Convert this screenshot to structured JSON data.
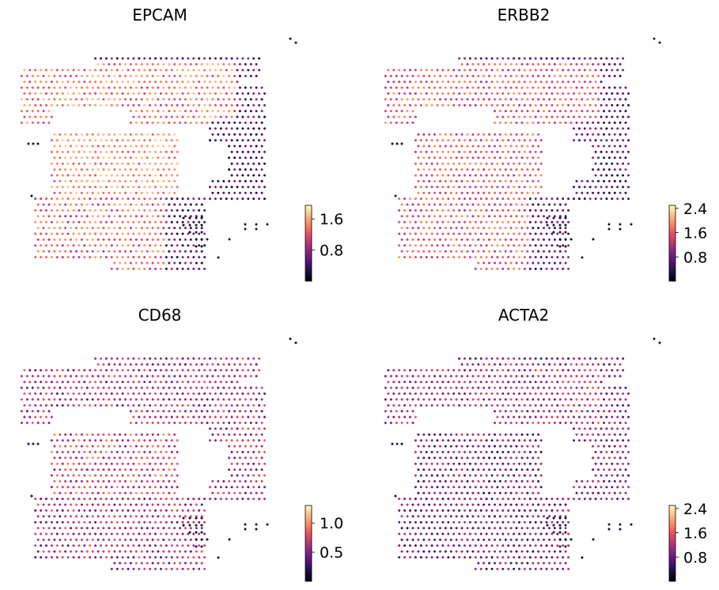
{
  "chart_data": [
    {
      "type": "scatter",
      "kind": "spatial-feature-plot",
      "title": "EPCAM",
      "colormap": "magma",
      "colorbar": {
        "vmin": 0.0,
        "vmax": 1.95,
        "ticks": [
          0.8,
          1.6
        ],
        "tick_labels": [
          "0.8",
          "1.6"
        ]
      },
      "axes_visible": false
    },
    {
      "type": "scatter",
      "kind": "spatial-feature-plot",
      "title": "ERBB2",
      "colormap": "magma",
      "colorbar": {
        "vmin": 0.0,
        "vmax": 2.5,
        "ticks": [
          0.8,
          1.6,
          2.4
        ],
        "tick_labels": [
          "0.8",
          "1.6",
          "2.4"
        ]
      },
      "axes_visible": false
    },
    {
      "type": "scatter",
      "kind": "spatial-feature-plot",
      "title": "CD68",
      "colormap": "magma",
      "colorbar": {
        "vmin": 0.0,
        "vmax": 1.3,
        "ticks": [
          0.5,
          1.0
        ],
        "tick_labels": [
          "0.5",
          "1.0"
        ]
      },
      "axes_visible": false
    },
    {
      "type": "scatter",
      "kind": "spatial-feature-plot",
      "title": "ACTA2",
      "colormap": "magma",
      "colorbar": {
        "vmin": 0.0,
        "vmax": 2.5,
        "ticks": [
          0.8,
          1.6,
          2.4
        ],
        "tick_labels": [
          "0.8",
          "1.6",
          "2.4"
        ]
      },
      "axes_visible": false
    }
  ]
}
